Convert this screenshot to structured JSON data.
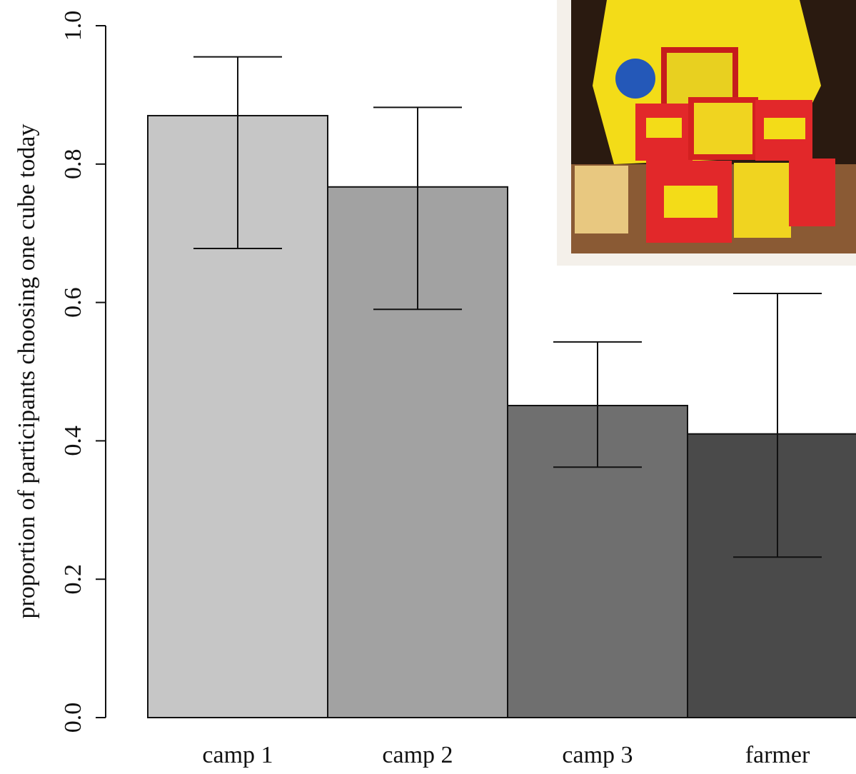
{
  "chart_data": {
    "type": "bar",
    "y_label": "proportion of participants choosing one cube today",
    "categories": [
      "camp 1",
      "camp 2",
      "camp 3",
      "farmer"
    ],
    "values": [
      0.87,
      0.767,
      0.451,
      0.41
    ],
    "lower": [
      0.678,
      0.59,
      0.362,
      0.232
    ],
    "upper": [
      0.955,
      0.882,
      0.543,
      0.613
    ],
    "colors": [
      "#c6c6c6",
      "#a2a2a2",
      "#6f6f6f",
      "#4a4a4a"
    ],
    "ylim": [
      0,
      1
    ],
    "yticks": [
      {
        "value": 0,
        "label": "0.0"
      },
      0.2,
      0.4,
      0.6,
      0.8,
      {
        "value": 1,
        "label": "1.0"
      }
    ]
  }
}
